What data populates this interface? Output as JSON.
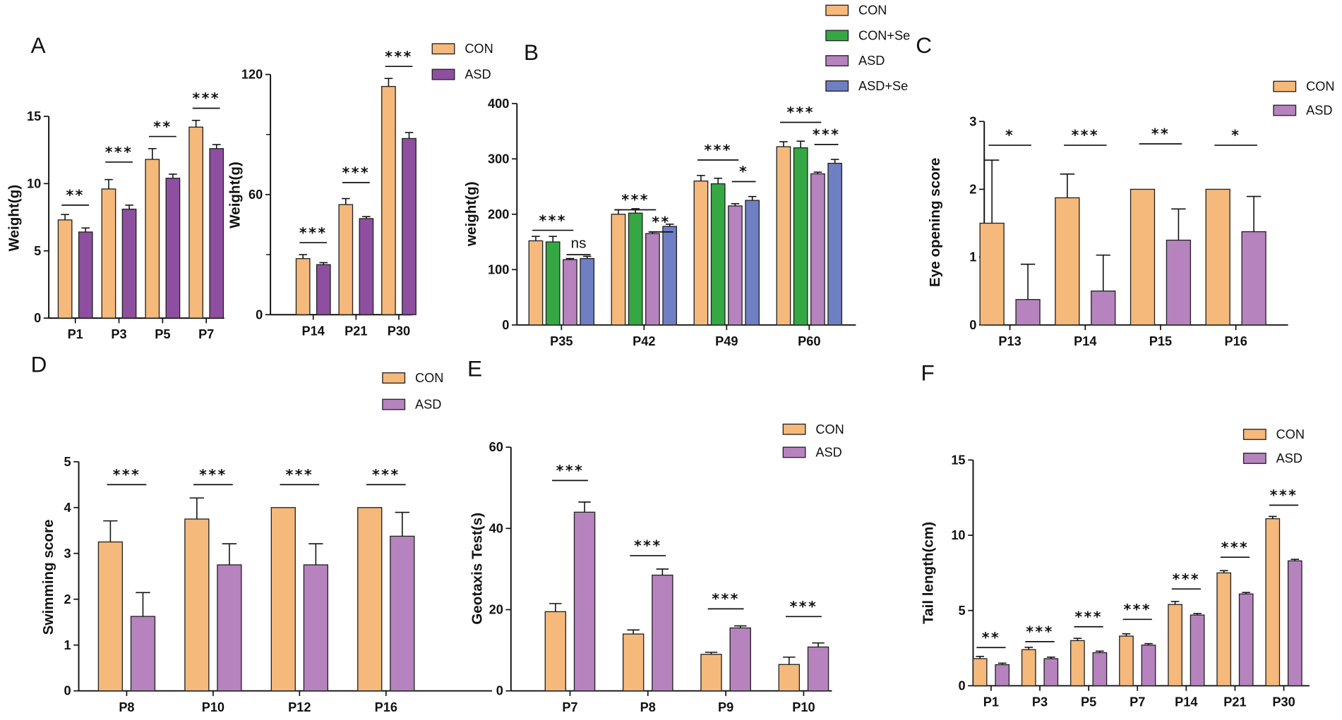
{
  "chart_data": [
    {
      "panel": "A",
      "type": "bar",
      "ylabel": "Weight(g)",
      "ylim": [
        0,
        15
      ],
      "yticks": [
        0,
        5,
        10,
        15
      ],
      "categories": [
        "P1",
        "P3",
        "P5",
        "P7"
      ],
      "series": [
        {
          "name": "CON",
          "color": "#f5b97b",
          "values": [
            7.3,
            9.6,
            11.8,
            14.2
          ],
          "sd": [
            0.4,
            0.7,
            0.8,
            0.5
          ]
        },
        {
          "name": "ASD",
          "color": "#8e4fa0",
          "values": [
            6.4,
            8.1,
            10.4,
            12.6
          ],
          "sd": [
            0.3,
            0.3,
            0.3,
            0.3
          ]
        }
      ],
      "significance": [
        {
          "category": 0,
          "from": 0,
          "to": 1,
          "label": "**",
          "y": 8.4
        },
        {
          "category": 1,
          "from": 0,
          "to": 1,
          "label": "***",
          "y": 11.6
        },
        {
          "category": 2,
          "from": 0,
          "to": 1,
          "label": "**",
          "y": 13.5
        },
        {
          "category": 3,
          "from": 0,
          "to": 1,
          "label": "***",
          "y": 15.6
        }
      ]
    },
    {
      "panel": "",
      "type": "bar",
      "ylabel": "Weight(g)",
      "ylim": [
        0,
        120
      ],
      "yticks": [
        0,
        60,
        120
      ],
      "minor_yticks": [
        30,
        90
      ],
      "categories": [
        "P14",
        "P21",
        "P30"
      ],
      "legend": "top-right",
      "series": [
        {
          "name": "CON",
          "color": "#f5b97b",
          "values": [
            28,
            55,
            114
          ],
          "sd": [
            2,
            3,
            4
          ]
        },
        {
          "name": "ASD",
          "color": "#8e4fa0",
          "values": [
            25,
            48,
            88
          ],
          "sd": [
            1,
            1,
            3
          ]
        }
      ],
      "significance": [
        {
          "category": 0,
          "from": 0,
          "to": 1,
          "label": "***",
          "y": 36
        },
        {
          "category": 1,
          "from": 0,
          "to": 1,
          "label": "***",
          "y": 66
        },
        {
          "category": 2,
          "from": 0,
          "to": 1,
          "label": "***",
          "y": 124
        }
      ]
    },
    {
      "panel": "B",
      "type": "bar",
      "ylabel": "weight(g)",
      "ylim": [
        0,
        400
      ],
      "yticks": [
        0,
        100,
        200,
        300,
        400
      ],
      "categories": [
        "P35",
        "P42",
        "P49",
        "P60"
      ],
      "legend": "top-right",
      "series": [
        {
          "name": "CON",
          "color": "#f5b97b",
          "values": [
            152,
            200,
            260,
            322
          ],
          "sd": [
            8,
            8,
            10,
            9
          ]
        },
        {
          "name": "CON+Se",
          "color": "#35a844",
          "values": [
            150,
            202,
            255,
            320
          ],
          "sd": [
            10,
            8,
            10,
            12
          ]
        },
        {
          "name": "ASD",
          "color": "#b683be",
          "values": [
            118,
            165,
            215,
            273
          ],
          "sd": [
            2,
            3,
            4,
            3
          ]
        },
        {
          "name": "ASD+Se",
          "color": "#6f7fc4",
          "values": [
            120,
            178,
            225,
            292
          ],
          "sd": [
            4,
            4,
            7,
            7
          ]
        }
      ],
      "significance": [
        {
          "category": 0,
          "from": 0,
          "to": 2,
          "label": "***",
          "y": 171
        },
        {
          "category": 0,
          "from": 2,
          "to": 3,
          "label": "ns",
          "y": 127
        },
        {
          "category": 1,
          "from": 0,
          "to": 2,
          "label": "***",
          "y": 208
        },
        {
          "category": 1,
          "from": 2,
          "to": 3,
          "label": "**",
          "y": 168
        },
        {
          "category": 2,
          "from": 0,
          "to": 2,
          "label": "***",
          "y": 298
        },
        {
          "category": 2,
          "from": 2,
          "to": 3,
          "label": "*",
          "y": 259
        },
        {
          "category": 3,
          "from": 0,
          "to": 2,
          "label": "***",
          "y": 366
        },
        {
          "category": 3,
          "from": 2,
          "to": 3,
          "label": "***",
          "y": 326
        }
      ]
    },
    {
      "panel": "C",
      "type": "bar",
      "ylabel": "Eye opening score",
      "ylim": [
        0,
        3
      ],
      "yticks": [
        0,
        1,
        2,
        3
      ],
      "categories": [
        "P13",
        "P14",
        "P15",
        "P16"
      ],
      "legend": "top-right",
      "series": [
        {
          "name": "CON",
          "color": "#f5b97b",
          "values": [
            1.5,
            1.875,
            2.0,
            2.0
          ],
          "sd": [
            0.93,
            0.35,
            0,
            0
          ]
        },
        {
          "name": "ASD",
          "color": "#b683be",
          "values": [
            0.375,
            0.5,
            1.25,
            1.375
          ],
          "sd": [
            0.52,
            0.53,
            0.46,
            0.52
          ]
        }
      ],
      "significance": [
        {
          "category": 0,
          "from": 0,
          "to": 1,
          "label": "*",
          "y": 2.65
        },
        {
          "category": 1,
          "from": 0,
          "to": 1,
          "label": "***",
          "y": 2.65
        },
        {
          "category": 2,
          "from": 0,
          "to": 1,
          "label": "**",
          "y": 2.67
        },
        {
          "category": 3,
          "from": 0,
          "to": 1,
          "label": "*",
          "y": 2.65
        }
      ]
    },
    {
      "panel": "D",
      "type": "bar",
      "ylabel": "Swimming score",
      "ylim": [
        0,
        5
      ],
      "yticks": [
        0,
        1,
        2,
        3,
        4,
        5
      ],
      "categories": [
        "P8",
        "P10",
        "P12",
        "P16"
      ],
      "legend": "top-right",
      "series": [
        {
          "name": "CON",
          "color": "#f5b97b",
          "values": [
            3.25,
            3.75,
            4.0,
            4.0
          ],
          "sd": [
            0.46,
            0.46,
            0,
            0
          ]
        },
        {
          "name": "ASD",
          "color": "#b683be",
          "values": [
            1.625,
            2.75,
            2.75,
            3.375
          ],
          "sd": [
            0.52,
            0.46,
            0.46,
            0.52
          ]
        }
      ],
      "significance": [
        {
          "category": 0,
          "from": 0,
          "to": 1,
          "label": "***",
          "y": 4.5
        },
        {
          "category": 1,
          "from": 0,
          "to": 1,
          "label": "***",
          "y": 4.5
        },
        {
          "category": 2,
          "from": 0,
          "to": 1,
          "label": "***",
          "y": 4.5
        },
        {
          "category": 3,
          "from": 0,
          "to": 1,
          "label": "***",
          "y": 4.5
        }
      ]
    },
    {
      "panel": "E",
      "type": "bar",
      "ylabel": "Geotaxis Test(s)",
      "ylim": [
        0,
        60
      ],
      "yticks": [
        0,
        20,
        40,
        60
      ],
      "categories": [
        "P7",
        "P8",
        "P9",
        "P10"
      ],
      "legend": "top-right",
      "series": [
        {
          "name": "CON",
          "color": "#f5b97b",
          "values": [
            19.5,
            14,
            9,
            6.5
          ],
          "sd": [
            2,
            1,
            0.5,
            1.8
          ]
        },
        {
          "name": "ASD",
          "color": "#b683be",
          "values": [
            44,
            28.5,
            15.5,
            10.8
          ],
          "sd": [
            2.5,
            1.5,
            0.5,
            1
          ]
        }
      ],
      "significance": [
        {
          "category": 0,
          "from": 0,
          "to": 1,
          "label": "***",
          "y": 51.8
        },
        {
          "category": 1,
          "from": 0,
          "to": 1,
          "label": "***",
          "y": 33.3
        },
        {
          "category": 2,
          "from": 0,
          "to": 1,
          "label": "***",
          "y": 20.2
        },
        {
          "category": 3,
          "from": 0,
          "to": 1,
          "label": "***",
          "y": 18.3
        }
      ]
    },
    {
      "panel": "F",
      "type": "bar",
      "ylabel": "Tail length(cm)",
      "ylim": [
        0,
        15
      ],
      "yticks": [
        0,
        5,
        10,
        15
      ],
      "categories": [
        "P1",
        "P3",
        "P5",
        "P7",
        "P14",
        "P21",
        "P30"
      ],
      "legend": "top-right",
      "series": [
        {
          "name": "CON",
          "color": "#f5b97b",
          "values": [
            1.8,
            2.4,
            3.0,
            3.3,
            5.4,
            7.5,
            11.1
          ],
          "sd": [
            0.15,
            0.15,
            0.15,
            0.15,
            0.2,
            0.15,
            0.15
          ]
        },
        {
          "name": "ASD",
          "color": "#b683be",
          "values": [
            1.4,
            1.8,
            2.2,
            2.7,
            4.7,
            6.1,
            8.3
          ],
          "sd": [
            0.1,
            0.1,
            0.1,
            0.1,
            0.1,
            0.1,
            0.1
          ]
        }
      ],
      "significance": [
        {
          "category": 0,
          "from": 0,
          "to": 1,
          "label": "**",
          "y": 2.54
        },
        {
          "category": 1,
          "from": 0,
          "to": 1,
          "label": "***",
          "y": 2.93
        },
        {
          "category": 2,
          "from": 0,
          "to": 1,
          "label": "***",
          "y": 3.92
        },
        {
          "category": 3,
          "from": 0,
          "to": 1,
          "label": "***",
          "y": 4.41
        },
        {
          "category": 4,
          "from": 0,
          "to": 1,
          "label": "***",
          "y": 6.43
        },
        {
          "category": 5,
          "from": 0,
          "to": 1,
          "label": "***",
          "y": 8.54
        },
        {
          "category": 6,
          "from": 0,
          "to": 1,
          "label": "***",
          "y": 12.0
        }
      ]
    }
  ]
}
